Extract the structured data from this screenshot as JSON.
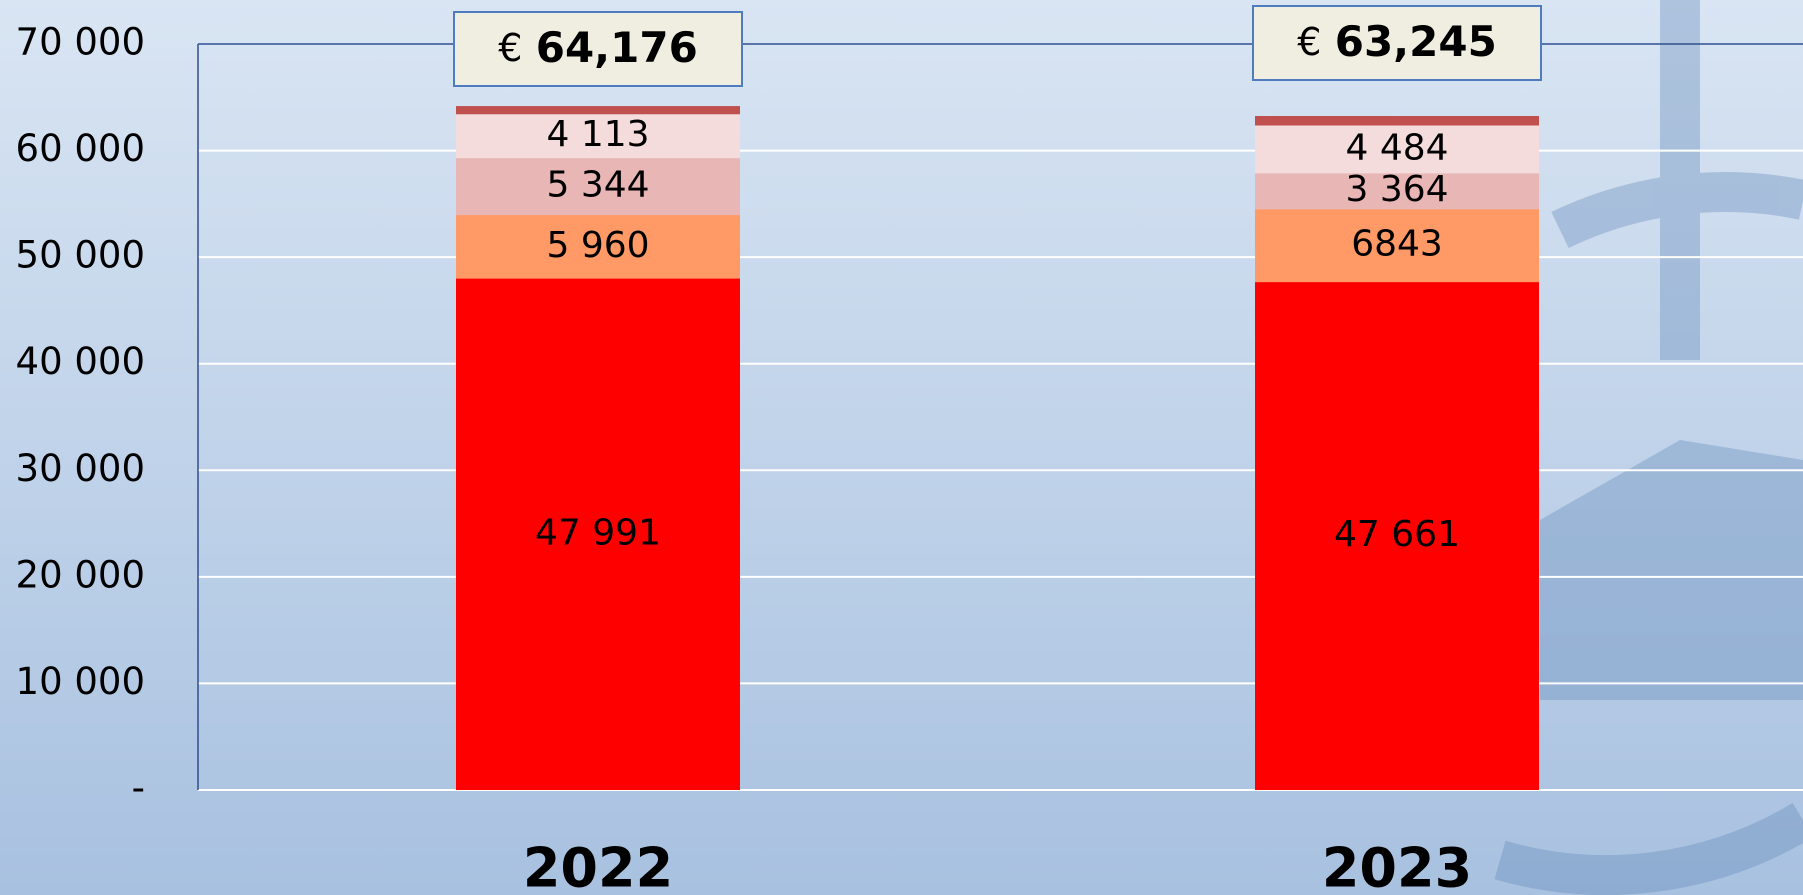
{
  "chart_data": {
    "type": "stacked_bar",
    "categories": [
      "2022",
      "2023"
    ],
    "series": [
      {
        "color": "#ff0000",
        "values": [
          47991,
          47661
        ],
        "value_labels": [
          "47 991",
          "47 661"
        ]
      },
      {
        "color": "#ff9966",
        "values": [
          5960,
          6843
        ],
        "value_labels": [
          "5 960",
          "6843"
        ]
      },
      {
        "color": "#e9b6b6",
        "values": [
          5344,
          3364
        ],
        "value_labels": [
          "5 344",
          "3 364"
        ]
      },
      {
        "color": "#f5dcdc",
        "values": [
          4113,
          4484
        ],
        "value_labels": [
          "4 113",
          "4 484"
        ]
      },
      {
        "color": "#c0504d",
        "values": [
          768,
          893
        ]
      }
    ],
    "totals": [
      64176,
      63245
    ],
    "total_prefix": "€",
    "total_labels": [
      "64,176",
      "63,245"
    ],
    "ylim": [
      0,
      70000
    ],
    "yticks": [
      {
        "value": 0,
        "label": "-"
      },
      {
        "value": 10000,
        "label": "10 000"
      },
      {
        "value": 20000,
        "label": "20 000"
      },
      {
        "value": 30000,
        "label": "30 000"
      },
      {
        "value": 40000,
        "label": "40 000"
      },
      {
        "value": 50000,
        "label": "50 000"
      },
      {
        "value": 60000,
        "label": "60 000"
      },
      {
        "value": 70000,
        "label": "70 000"
      }
    ],
    "grid": true
  }
}
